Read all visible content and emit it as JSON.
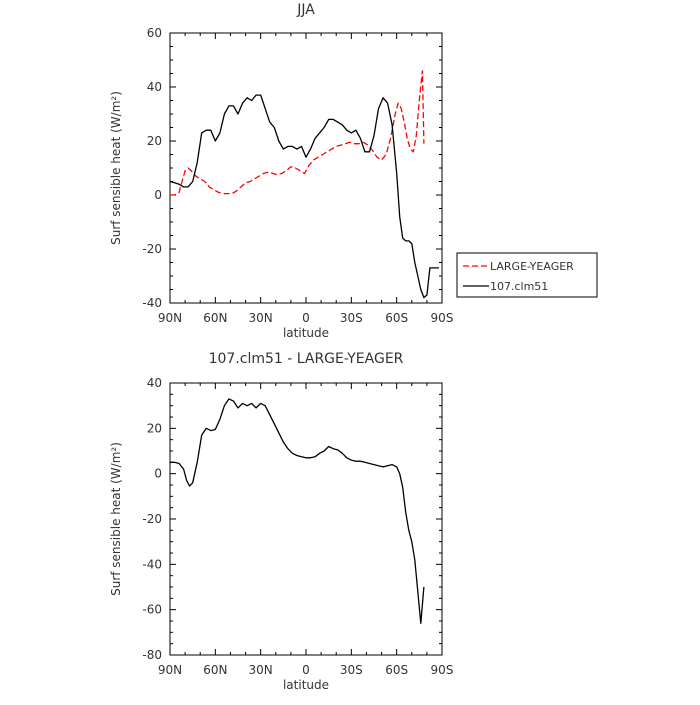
{
  "chart_data": [
    {
      "type": "line",
      "title": "JJA",
      "xlabel": "latitude",
      "ylabel": "Surf sensible heat (W/m²)",
      "xlim": [
        -90,
        90
      ],
      "ylim": [
        -40,
        60
      ],
      "x_ticks": [
        -90,
        -60,
        -30,
        0,
        30,
        60,
        90
      ],
      "x_tick_labels": [
        "90N",
        "60N",
        "30N",
        "0",
        "30S",
        "60S",
        "90S"
      ],
      "y_ticks": [
        -40,
        -20,
        0,
        20,
        40,
        60
      ],
      "y_tick_labels": [
        "-40",
        "-20",
        "0",
        "20",
        "40",
        "60"
      ],
      "legend_position": "outside-right",
      "series": [
        {
          "name": "LARGE-YEAGER",
          "color": "#ff0000",
          "dash": "dashed",
          "x": [
            -90,
            -87,
            -84,
            -82,
            -80,
            -78,
            -76,
            -73,
            -70,
            -67,
            -64,
            -61,
            -58,
            -55,
            -52,
            -49,
            -46,
            -43,
            -40,
            -37,
            -34,
            -31,
            -28,
            -25,
            -22,
            -19,
            -16,
            -13,
            -10,
            -7,
            -4,
            -1,
            2,
            5,
            8,
            11,
            14,
            17,
            20,
            23,
            26,
            29,
            32,
            35,
            38,
            41,
            44,
            47,
            50,
            53,
            56,
            59,
            61,
            63,
            65,
            67,
            69,
            71,
            73,
            75,
            77,
            78
          ],
          "y": [
            0,
            0,
            1,
            5,
            9,
            10,
            9,
            7,
            6,
            5,
            3,
            2,
            1,
            0.5,
            0.5,
            0.5,
            1.5,
            3,
            4.5,
            5,
            6,
            7,
            8,
            8.5,
            8,
            7.5,
            8,
            9,
            10.5,
            10,
            9,
            8,
            11,
            13,
            14,
            15,
            16,
            17,
            18,
            18.5,
            19,
            19.5,
            19,
            19,
            19.5,
            18.5,
            16.5,
            14,
            13,
            15,
            21,
            30,
            34,
            32,
            27,
            21,
            17,
            16,
            22,
            35,
            46,
            19
          ]
        },
        {
          "name": "107.clm51",
          "color": "#000000",
          "dash": "solid",
          "x": [
            -90,
            -87,
            -84,
            -81,
            -78,
            -75,
            -72,
            -69,
            -66,
            -63,
            -60,
            -57,
            -54,
            -51,
            -48,
            -45,
            -42,
            -39,
            -36,
            -33,
            -30,
            -27,
            -24,
            -21,
            -18,
            -15,
            -12,
            -9,
            -6,
            -3,
            0,
            3,
            6,
            9,
            12,
            15,
            18,
            21,
            24,
            27,
            30,
            33,
            36,
            39,
            42,
            45,
            48,
            51,
            54,
            57,
            60,
            62,
            64,
            66,
            68,
            70,
            72,
            74,
            76,
            78,
            80,
            82,
            84,
            86,
            88
          ],
          "y": [
            5,
            4.5,
            4,
            3,
            3,
            5,
            12,
            23,
            24,
            24,
            20,
            23,
            30,
            33,
            33,
            30,
            34,
            36,
            35,
            37,
            37,
            32,
            27,
            25,
            20,
            17,
            18,
            18,
            17,
            18,
            14,
            17,
            21,
            23,
            25,
            28,
            28,
            27,
            26,
            24,
            23,
            24,
            21,
            16,
            16,
            22,
            32,
            36,
            34,
            26,
            8,
            -8,
            -16,
            -17,
            -17,
            -18,
            -25,
            -30,
            -35,
            -38,
            -37,
            -27,
            -27,
            -27,
            -27
          ]
        }
      ]
    },
    {
      "type": "line",
      "title": "107.clm51 - LARGE-YEAGER",
      "xlabel": "latitude",
      "ylabel": "Surf sensible heat (W/m²)",
      "xlim": [
        -90,
        90
      ],
      "ylim": [
        -80,
        40
      ],
      "x_ticks": [
        -90,
        -60,
        -30,
        0,
        30,
        60,
        90
      ],
      "x_tick_labels": [
        "90N",
        "60N",
        "30N",
        "0",
        "30S",
        "60S",
        "90S"
      ],
      "y_ticks": [
        -80,
        -60,
        -40,
        -20,
        0,
        20,
        40
      ],
      "y_tick_labels": [
        "-80",
        "-60",
        "-40",
        "-20",
        "0",
        "20",
        "40"
      ],
      "series": [
        {
          "name": "",
          "color": "#000000",
          "dash": "solid",
          "x": [
            -90,
            -87,
            -84,
            -81,
            -79,
            -77,
            -75,
            -72,
            -69,
            -66,
            -63,
            -60,
            -57,
            -54,
            -51,
            -48,
            -45,
            -42,
            -39,
            -36,
            -33,
            -30,
            -27,
            -24,
            -21,
            -18,
            -15,
            -12,
            -9,
            -6,
            -3,
            0,
            3,
            6,
            9,
            12,
            15,
            18,
            21,
            24,
            27,
            30,
            33,
            36,
            39,
            42,
            45,
            48,
            51,
            54,
            57,
            60,
            62,
            64,
            66,
            68,
            70,
            72,
            74,
            76,
            78
          ],
          "y": [
            5,
            5,
            4.5,
            2,
            -3,
            -5.5,
            -4,
            5,
            17,
            20,
            19,
            19.5,
            24,
            30,
            33,
            32,
            29,
            31,
            30,
            31,
            29,
            31,
            30,
            26,
            22,
            18,
            14,
            11,
            9,
            8,
            7.5,
            7,
            7,
            7.5,
            9,
            10,
            12,
            11,
            10.5,
            9,
            7,
            6,
            5.5,
            5.5,
            5,
            4.5,
            4,
            3.5,
            3,
            3.5,
            4,
            3,
            0,
            -6,
            -17,
            -25,
            -30,
            -38,
            -52,
            -66,
            -50
          ]
        }
      ]
    }
  ]
}
